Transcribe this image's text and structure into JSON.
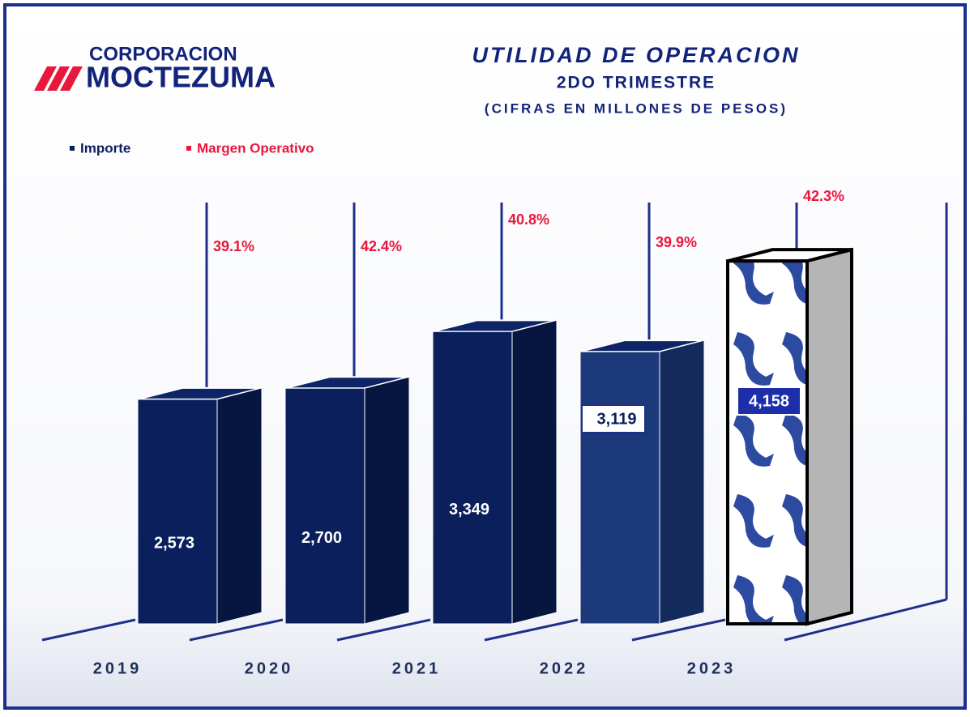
{
  "logo": {
    "line1": "CORPORACION",
    "line2": "MOCTEZUMA"
  },
  "chart_data": {
    "type": "bar3d",
    "title": "UTILIDAD  DE  OPERACION",
    "subtitle": "2DO TRIMESTRE",
    "note": "(CIFRAS EN MILLONES DE PESOS)",
    "categories": [
      "2019",
      "2020",
      "2021",
      "2022",
      "2023"
    ],
    "series": [
      {
        "name": "Importe",
        "color": "#0a1f5c",
        "values": [
          2573,
          2700,
          3349,
          3119,
          4158
        ],
        "value_labels": [
          "2,573",
          "2,700",
          "3,349",
          "3,119",
          "4,158"
        ]
      },
      {
        "name": "Margen Operativo",
        "color": "#e8173c",
        "values": [
          39.1,
          42.4,
          40.8,
          39.9,
          42.3
        ],
        "value_labels": [
          "39.1%",
          "42.4%",
          "40.8%",
          "39.9%",
          "42.3%"
        ]
      }
    ]
  }
}
